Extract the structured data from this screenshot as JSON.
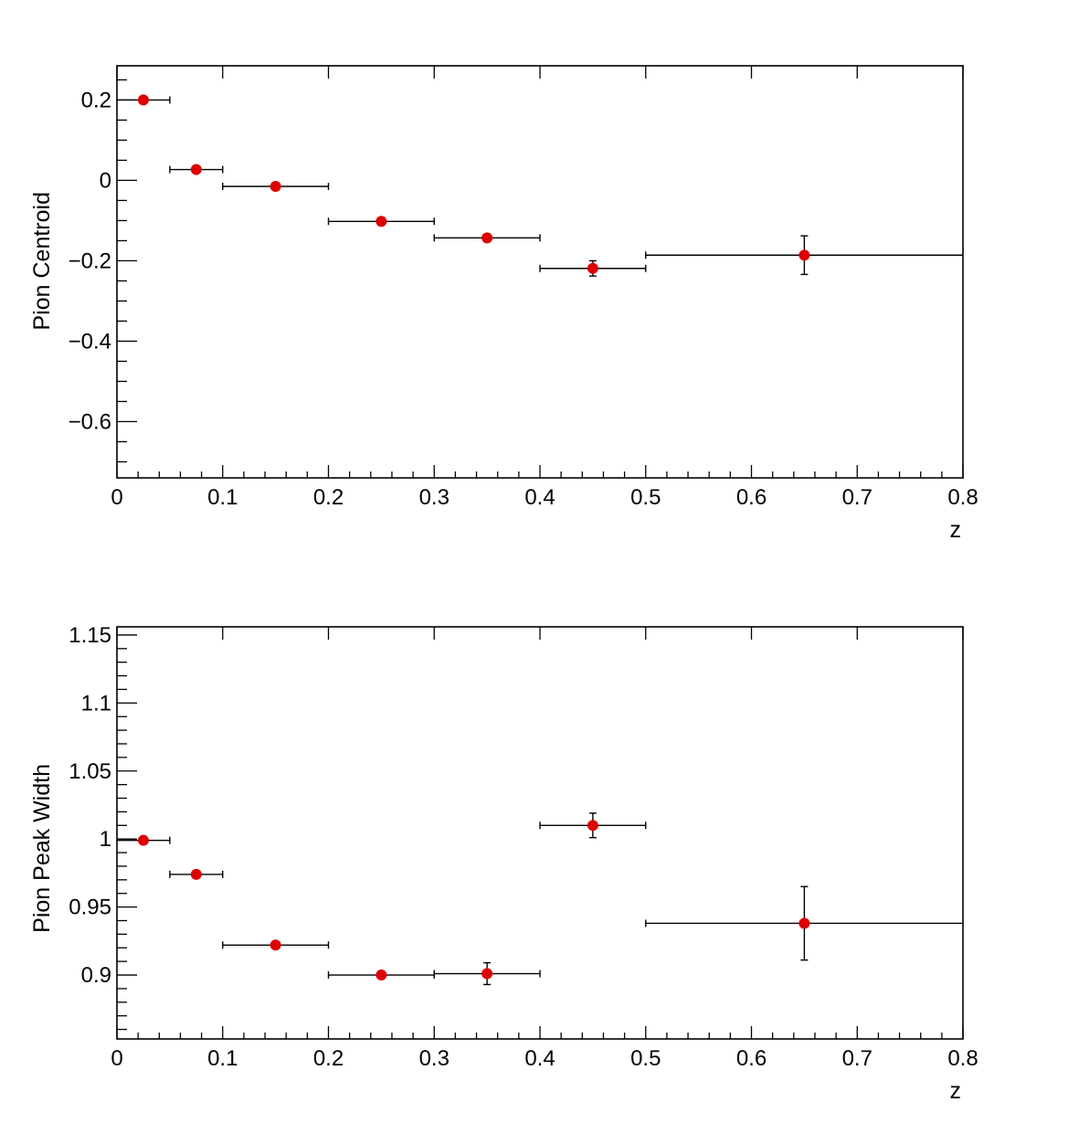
{
  "chart_data": [
    {
      "type": "scatter",
      "title": "",
      "xlabel": "z",
      "ylabel": "Pion Centroid",
      "xlim": [
        0,
        0.8
      ],
      "ylim": [
        -0.74,
        0.285
      ],
      "grid": false,
      "xticks": [
        "0",
        "0.1",
        "0.2",
        "0.3",
        "0.4",
        "0.5",
        "0.6",
        "0.7",
        "0.8"
      ],
      "yticks": [
        "0.2",
        "0",
        "−0.2",
        "−0.4",
        "−0.6"
      ],
      "ytick_values": [
        0.2,
        0,
        -0.2,
        -0.4,
        -0.6
      ],
      "marker_color": "#dd0000",
      "points": [
        {
          "x": 0.025,
          "y": 0.2,
          "xlo": 0.0,
          "xhi": 0.05,
          "yerr": 0.003
        },
        {
          "x": 0.075,
          "y": 0.027,
          "xlo": 0.05,
          "xhi": 0.1,
          "yerr": 0.003
        },
        {
          "x": 0.15,
          "y": -0.015,
          "xlo": 0.1,
          "xhi": 0.2,
          "yerr": 0.003
        },
        {
          "x": 0.25,
          "y": -0.102,
          "xlo": 0.2,
          "xhi": 0.3,
          "yerr": 0.003
        },
        {
          "x": 0.35,
          "y": -0.143,
          "xlo": 0.3,
          "xhi": 0.4,
          "yerr": 0.004
        },
        {
          "x": 0.45,
          "y": -0.219,
          "xlo": 0.4,
          "xhi": 0.5,
          "yerr": 0.019
        },
        {
          "x": 0.65,
          "y": -0.186,
          "xlo": 0.5,
          "xhi": 0.8,
          "yerr": 0.048
        }
      ]
    },
    {
      "type": "scatter",
      "title": "",
      "xlabel": "z",
      "ylabel": "Pion Peak Width",
      "xlim": [
        0,
        0.8
      ],
      "ylim": [
        0.853,
        1.156
      ],
      "grid": false,
      "xticks": [
        "0",
        "0.1",
        "0.2",
        "0.3",
        "0.4",
        "0.5",
        "0.6",
        "0.7",
        "0.8"
      ],
      "yticks": [
        "1.15",
        "1.1",
        "1.05",
        "1",
        "0.95",
        "0.9"
      ],
      "ytick_values": [
        1.15,
        1.1,
        1.05,
        1.0,
        0.95,
        0.9
      ],
      "marker_color": "#dd0000",
      "points": [
        {
          "x": 0.025,
          "y": 0.999,
          "xlo": 0.0,
          "xhi": 0.05,
          "yerr": 0.001
        },
        {
          "x": 0.075,
          "y": 0.974,
          "xlo": 0.05,
          "xhi": 0.1,
          "yerr": 0.001
        },
        {
          "x": 0.15,
          "y": 0.922,
          "xlo": 0.1,
          "xhi": 0.2,
          "yerr": 0.001
        },
        {
          "x": 0.25,
          "y": 0.9,
          "xlo": 0.2,
          "xhi": 0.3,
          "yerr": 0.001
        },
        {
          "x": 0.35,
          "y": 0.901,
          "xlo": 0.3,
          "xhi": 0.4,
          "yerr": 0.008
        },
        {
          "x": 0.45,
          "y": 1.01,
          "xlo": 0.4,
          "xhi": 0.5,
          "yerr": 0.009
        },
        {
          "x": 0.65,
          "y": 0.938,
          "xlo": 0.5,
          "xhi": 0.8,
          "yerr": 0.027
        }
      ]
    }
  ]
}
